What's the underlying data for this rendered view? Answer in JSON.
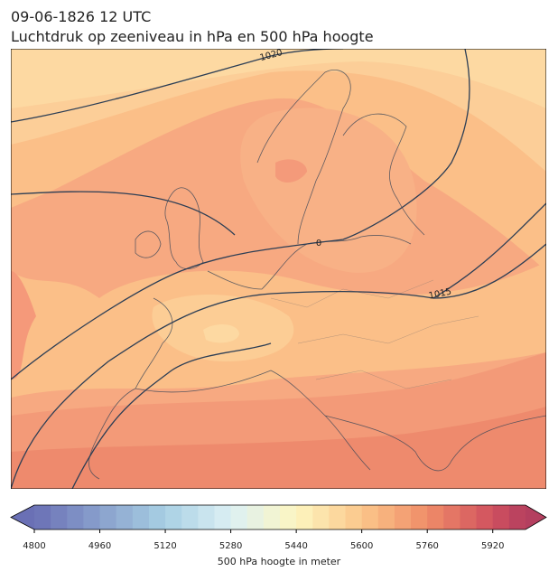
{
  "header": {
    "title": "09-06-1826 12 UTC",
    "subtitle": "Luchtdruk op zeeniveau in hPa en 500 hPa hoogte"
  },
  "map": {
    "contour_labels": [
      "1020",
      "0",
      "1015"
    ]
  },
  "colorbar": {
    "lim": [
      4800,
      6000
    ],
    "step": 40,
    "ticks": [
      4800,
      4960,
      5120,
      5280,
      5440,
      5600,
      5760,
      5920
    ],
    "label": "500 hPa hoogte in meter",
    "colormap": [
      [
        4800,
        "#6a70b5"
      ],
      [
        5120,
        "#a8d0e4"
      ],
      [
        5280,
        "#dcf0f4"
      ],
      [
        5440,
        "#fdf6c0"
      ],
      [
        5600,
        "#fbc68a"
      ],
      [
        5760,
        "#f08d68"
      ],
      [
        5920,
        "#d0505f"
      ],
      [
        6000,
        "#b43f5f"
      ]
    ]
  }
}
